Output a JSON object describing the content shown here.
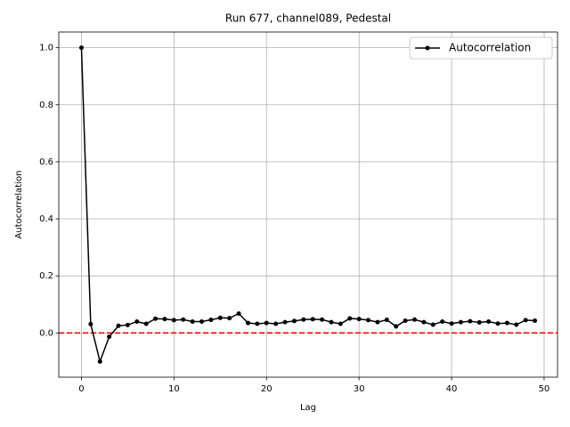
{
  "chart_data": {
    "type": "line",
    "title": "Run 677, channel089, Pedestal",
    "xlabel": "Lag",
    "ylabel": "Autocorrelation",
    "x": [
      0,
      1,
      2,
      3,
      4,
      5,
      6,
      7,
      8,
      9,
      10,
      11,
      12,
      13,
      14,
      15,
      16,
      17,
      18,
      19,
      20,
      21,
      22,
      23,
      24,
      25,
      26,
      27,
      28,
      29,
      30,
      31,
      32,
      33,
      34,
      35,
      36,
      37,
      38,
      39,
      40,
      41,
      42,
      43,
      44,
      45,
      46,
      47,
      48,
      49
    ],
    "series": [
      {
        "name": "Autocorrelation",
        "color": "#000000",
        "values": [
          1.0,
          0.031,
          -0.1,
          -0.013,
          0.025,
          0.028,
          0.04,
          0.032,
          0.05,
          0.049,
          0.045,
          0.047,
          0.04,
          0.04,
          0.046,
          0.053,
          0.052,
          0.068,
          0.035,
          0.032,
          0.035,
          0.032,
          0.038,
          0.042,
          0.047,
          0.048,
          0.047,
          0.038,
          0.032,
          0.051,
          0.049,
          0.045,
          0.038,
          0.046,
          0.023,
          0.043,
          0.047,
          0.038,
          0.029,
          0.04,
          0.033,
          0.038,
          0.041,
          0.037,
          0.04,
          0.033,
          0.035,
          0.029,
          0.045,
          0.043
        ]
      }
    ],
    "reference_line": {
      "y": 0,
      "color": "#ff0000"
    },
    "xlim": [
      -2.45,
      51.45
    ],
    "ylim": [
      -0.155,
      1.055
    ],
    "xticks": [
      0,
      10,
      20,
      30,
      40,
      50
    ],
    "yticks": [
      {
        "value": 0,
        "label": "0.0"
      },
      {
        "value": 0.2,
        "label": "0.2"
      },
      {
        "value": 0.4,
        "label": "0.4"
      },
      {
        "value": 0.6,
        "label": "0.6"
      },
      {
        "value": 0.8,
        "label": "0.8"
      },
      {
        "value": 1,
        "label": "1.0"
      }
    ],
    "grid": true,
    "legend": "upper right"
  }
}
